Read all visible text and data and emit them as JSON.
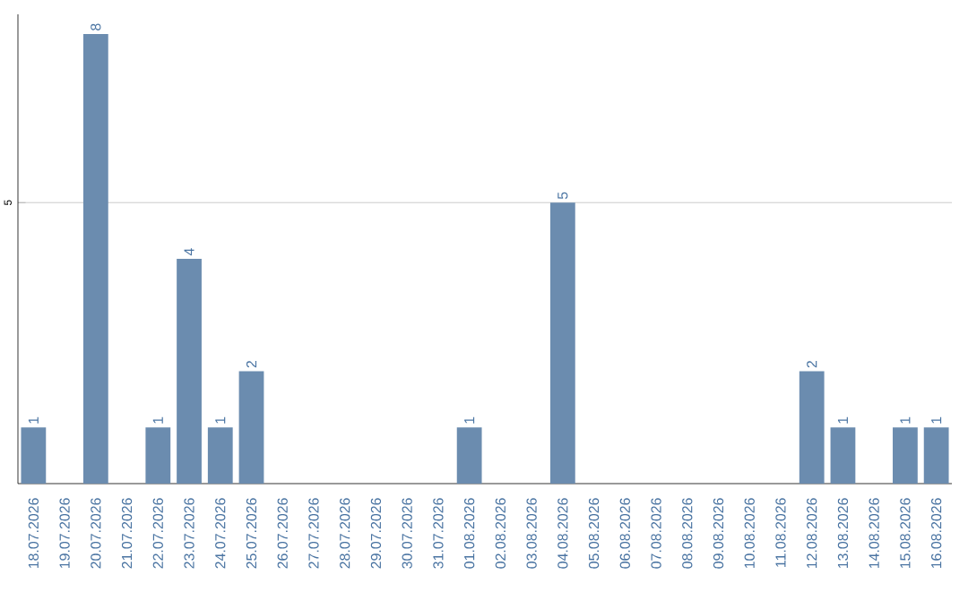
{
  "chart_data": {
    "type": "bar",
    "categories": [
      "18.07.2026",
      "19.07.2026",
      "20.07.2026",
      "21.07.2026",
      "22.07.2026",
      "23.07.2026",
      "24.07.2026",
      "25.07.2026",
      "26.07.2026",
      "27.07.2026",
      "28.07.2026",
      "29.07.2026",
      "30.07.2026",
      "31.07.2026",
      "01.08.2026",
      "02.08.2026",
      "03.08.2026",
      "04.08.2026",
      "05.08.2026",
      "06.08.2026",
      "07.08.2026",
      "08.08.2026",
      "09.08.2026",
      "10.08.2026",
      "11.08.2026",
      "12.08.2026",
      "13.08.2026",
      "14.08.2026",
      "15.08.2026",
      "16.08.2026"
    ],
    "values": [
      1,
      0,
      8,
      0,
      1,
      4,
      1,
      2,
      0,
      0,
      0,
      0,
      0,
      0,
      1,
      0,
      0,
      5,
      0,
      0,
      0,
      0,
      0,
      0,
      0,
      2,
      1,
      0,
      1,
      1
    ],
    "value_labels": [
      "1",
      null,
      "8",
      null,
      "1",
      "4",
      "1",
      "2",
      null,
      null,
      null,
      null,
      null,
      null,
      "1",
      null,
      null,
      "5",
      null,
      null,
      null,
      null,
      null,
      null,
      null,
      "2",
      "1",
      null,
      "1",
      "1"
    ],
    "color": "#6b8caf",
    "ylim": [
      0,
      8.35
    ],
    "yticks": [
      5
    ],
    "grid": "y"
  }
}
